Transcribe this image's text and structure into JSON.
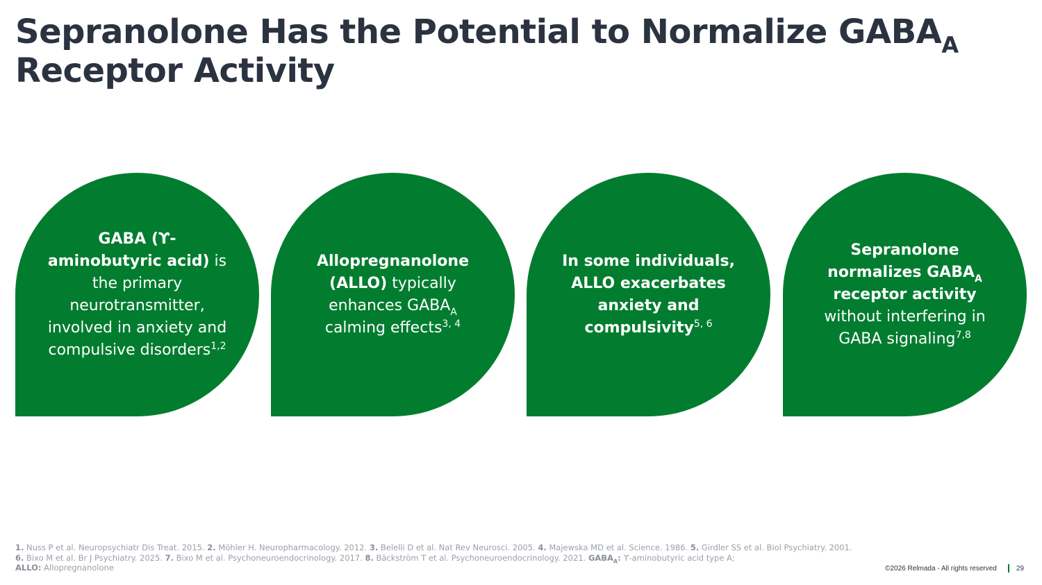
{
  "title": {
    "line1_main": "Sepranolone Has the Potential to Normalize GABA",
    "line1_sub": "A",
    "line2": "Receptor Activity"
  },
  "cards": [
    {
      "p1_bold": "GABA (ϒ-aminobutyric acid)",
      "p2": " is the primary neurotransmitter, involved in anxiety and compulsive disorders",
      "sup": "1,2"
    },
    {
      "p1_bold": "Allopregnanolone (ALLO)",
      "p2": " typically enhances GABA",
      "sub": "A",
      "p3": " calming effects",
      "sup": "3, 4"
    },
    {
      "p1_bold": "In some individuals, ALLO exacerbates anxiety and compulsivity",
      "sup": "5, 6"
    },
    {
      "p1_bold": "Sepranolone normalizes GABA",
      "sub": "A",
      "p2_bold": " receptor activity",
      "p3": " without interfering in GABA signaling",
      "sup": "7,8"
    }
  ],
  "references": {
    "r1_num": "1.",
    "r1": " Nuss P et al. Neuropsychiatr Dis Treat. 2015. ",
    "r2_num": "2.",
    "r2": " Möhler H. Neuropharmacology. 2012. ",
    "r3_num": "3.",
    "r3": " Belelli D et al. Nat Rev Neurosci. 2005. ",
    "r4_num": "4.",
    "r4": " Majewska MD et al. Science. 1986. ",
    "r5_num": "5.",
    "r5": " Girdler SS et al. Biol Psychiatry. 2001. ",
    "r6_num": "6.",
    "r6": " Bixo M et al. Br J Psychiatry. 2025. ",
    "r7_num": "7.",
    "r7": " Bixo M et al. Psychoneuroendocrinology. 2017. ",
    "r8_num": "8.",
    "r8": " Bäckström T et al. Psychoneuroendocrinology. 2021. ",
    "gaba_term": "GABA",
    "gaba_sub": "A",
    "gaba_colon": ":",
    "gaba_def": " ϒ-aminobutyric acid type A;",
    "allo_term": "ALLO:",
    "allo_def": " Allopregnanolone"
  },
  "footer": {
    "copyright": "©2026 Relmada - All rights reserved",
    "page_number": "29"
  },
  "colors": {
    "accent_green": "#027d2f",
    "title_text": "#2b3340",
    "reference_text": "#9aa0a8"
  }
}
